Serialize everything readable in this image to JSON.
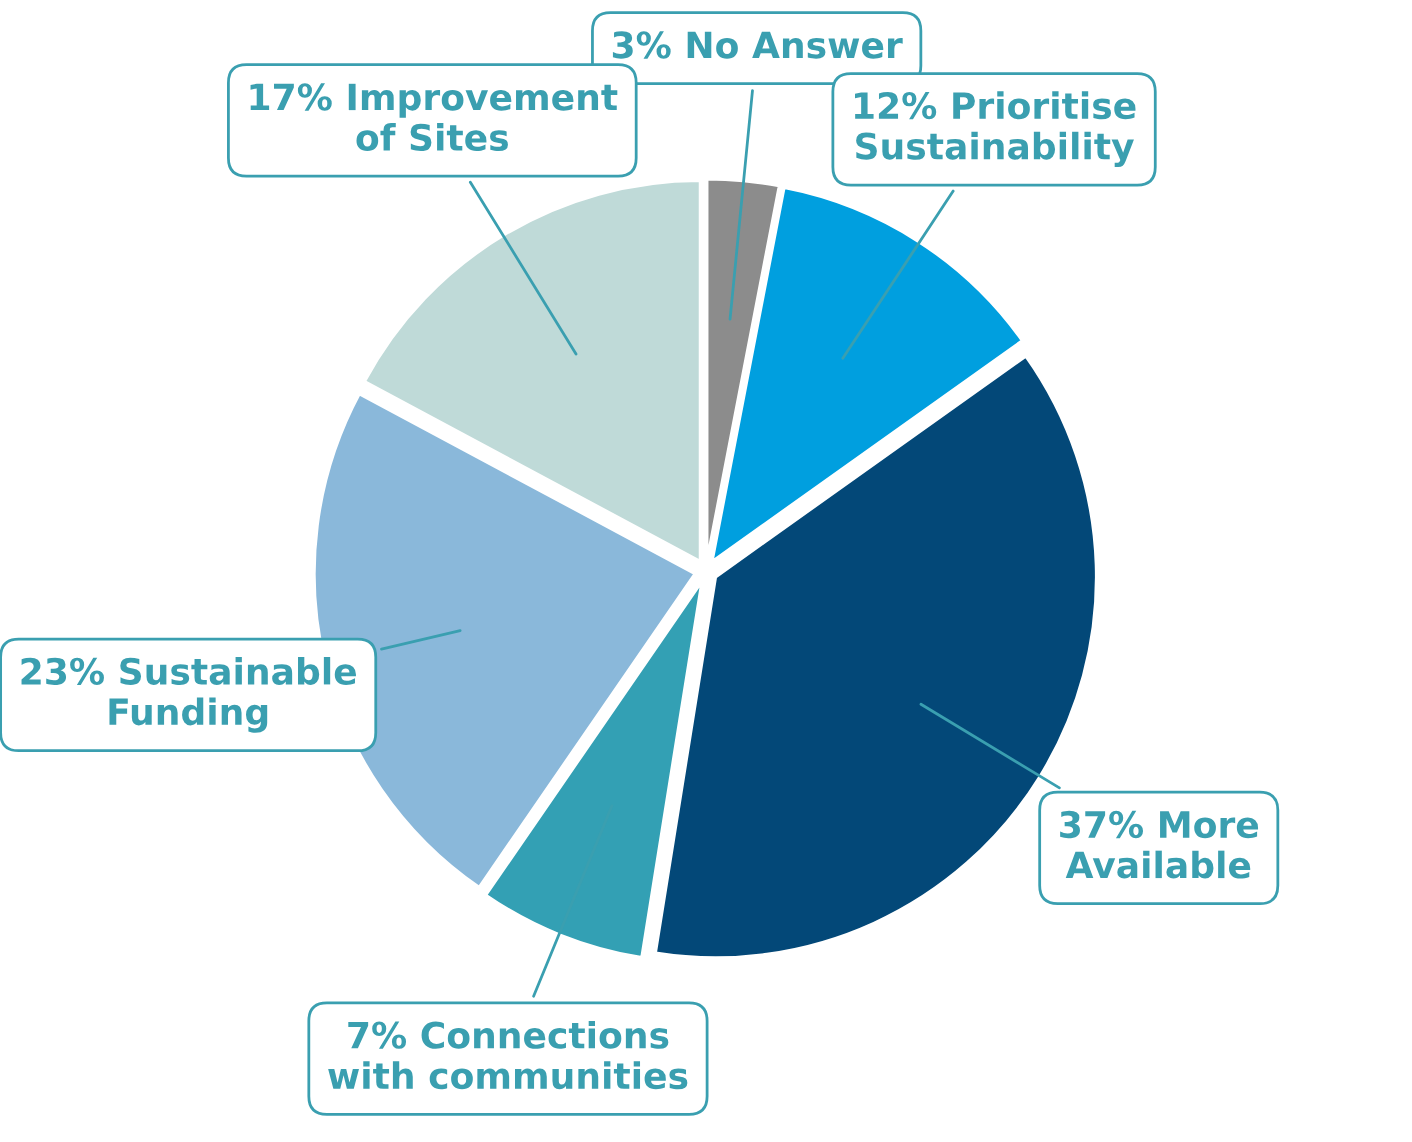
{
  "chart_data": {
    "type": "pie",
    "categories": [
      "3% No Answer",
      "12% Prioritise Sustainability",
      "37% More Available",
      "7% Connections with communities",
      "23% Sustainable Funding",
      "17% Improvement of Sites"
    ],
    "values": [
      3,
      12,
      37,
      7,
      23,
      17
    ],
    "colors": [
      "#8c8c8c",
      "#009fdf",
      "#034878",
      "#33a0b4",
      "#8ab8da",
      "#bfdad8"
    ],
    "legend": false
  }
}
